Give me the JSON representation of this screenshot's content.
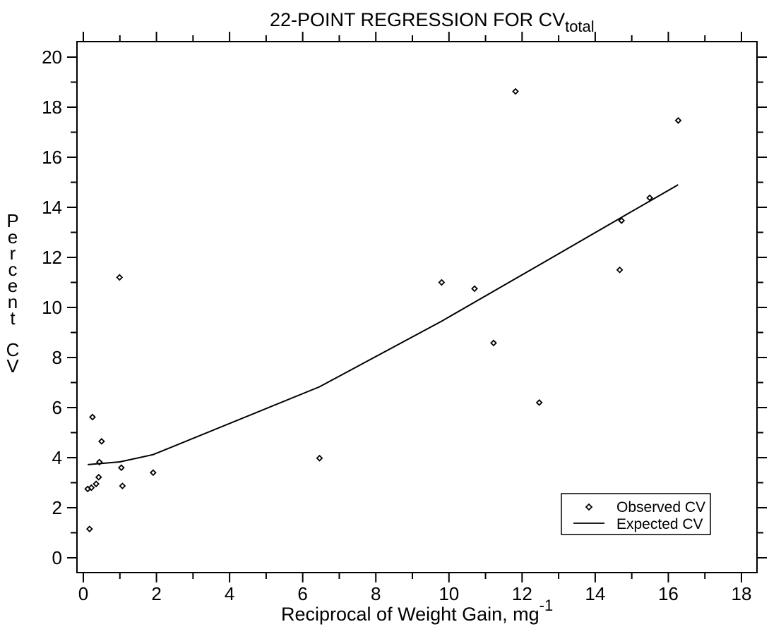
{
  "chart_data": {
    "type": "scatter",
    "title": "22-POINT REGRESSION FOR CV",
    "title_subscript": "total",
    "xlabel": "Reciprocal of Weight Gain, mg",
    "xlabel_superscript": "-1",
    "ylabel": "Percent CV",
    "xlim": [
      0,
      18
    ],
    "ylim": [
      0,
      20
    ],
    "x_ticks": [
      "0",
      "2",
      "4",
      "6",
      "8",
      "10",
      "12",
      "14",
      "16",
      "18"
    ],
    "y_ticks": [
      "0",
      "2",
      "4",
      "6",
      "8",
      "10",
      "12",
      "14",
      "16",
      "18",
      "20"
    ],
    "grid": false,
    "legend_position": "bottom-right",
    "series": [
      {
        "name": "Observed CV",
        "marker": "diamond",
        "points": [
          [
            0.12,
            2.75
          ],
          [
            0.17,
            1.15
          ],
          [
            0.22,
            2.8
          ],
          [
            0.25,
            5.62
          ],
          [
            0.35,
            2.95
          ],
          [
            0.42,
            3.22
          ],
          [
            0.44,
            3.82
          ],
          [
            0.5,
            4.65
          ],
          [
            0.99,
            11.2
          ],
          [
            1.04,
            3.6
          ],
          [
            1.07,
            2.87
          ],
          [
            1.91,
            3.4
          ],
          [
            6.46,
            3.98
          ],
          [
            9.8,
            11.0
          ],
          [
            10.7,
            10.75
          ],
          [
            11.22,
            8.58
          ],
          [
            11.82,
            18.63
          ],
          [
            12.47,
            6.2
          ],
          [
            14.67,
            11.5
          ],
          [
            14.72,
            13.47
          ],
          [
            15.49,
            14.38
          ],
          [
            16.27,
            17.47
          ]
        ]
      },
      {
        "name": "Expected CV",
        "style": "line",
        "points": [
          [
            0.12,
            3.72
          ],
          [
            1.0,
            3.83
          ],
          [
            1.91,
            4.12
          ],
          [
            6.46,
            6.83
          ],
          [
            9.8,
            9.45
          ],
          [
            12.47,
            11.7
          ],
          [
            14.72,
            13.6
          ],
          [
            16.27,
            14.9
          ]
        ]
      }
    ]
  }
}
